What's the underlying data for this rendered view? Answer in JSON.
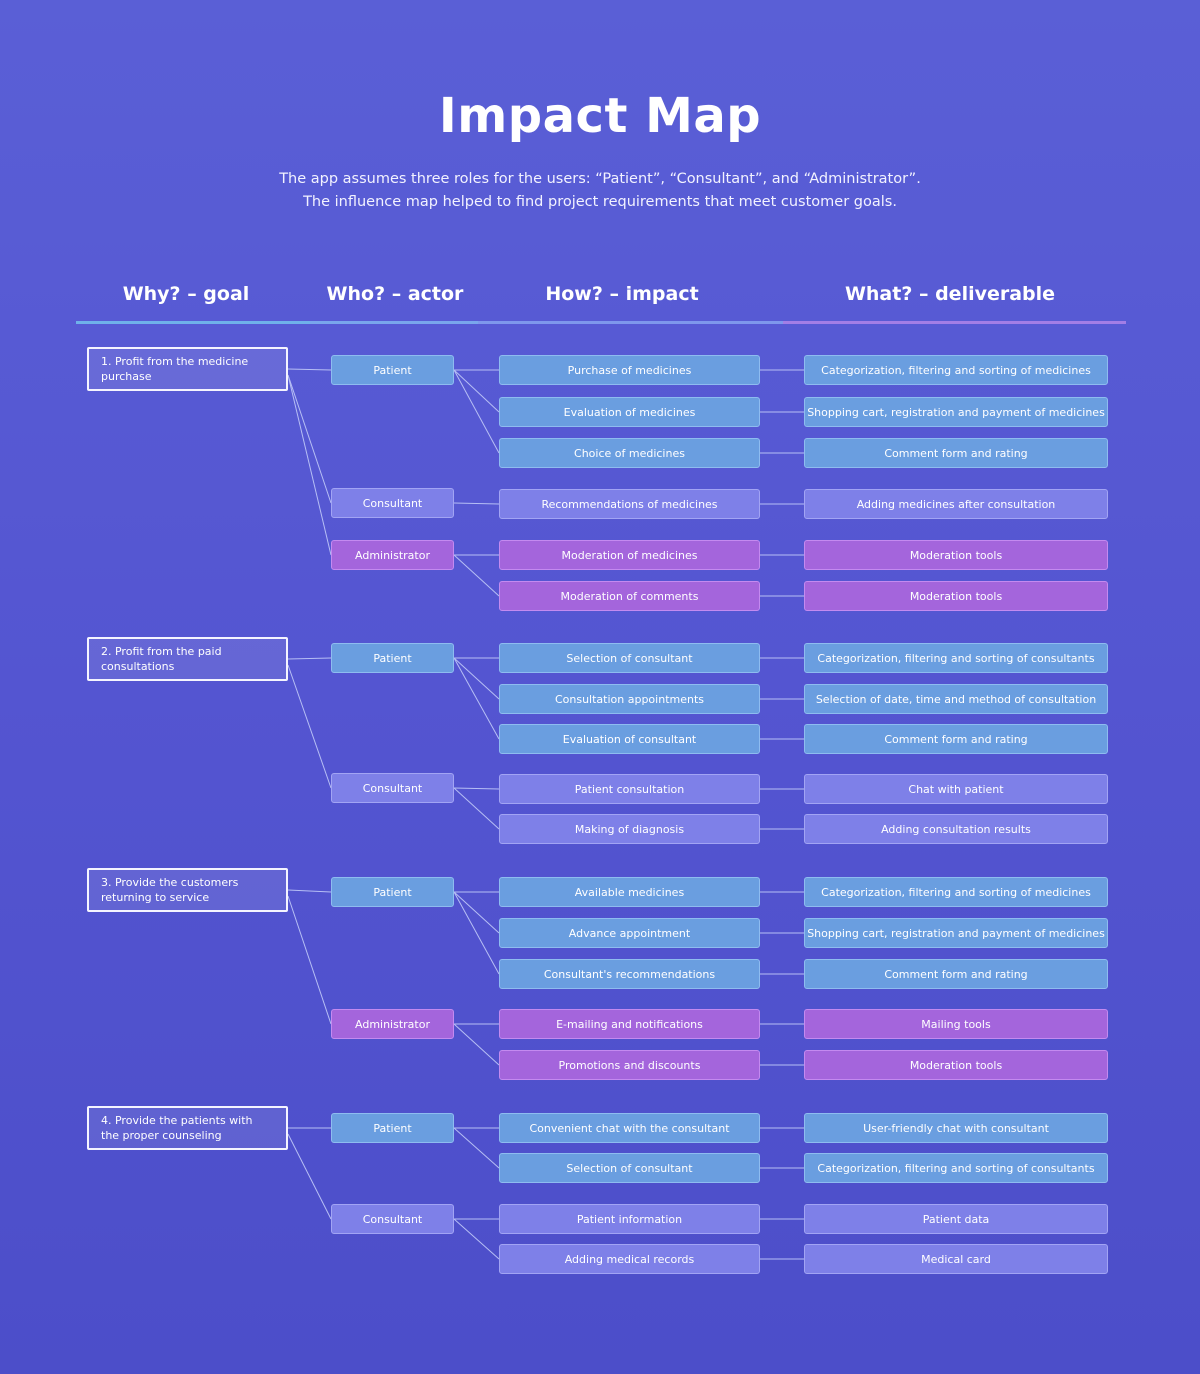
{
  "header": {
    "title": "Impact Map",
    "subtitle_line1": "The app assumes three roles for the users: “Patient”, “Consultant”,  and “Administrator”.",
    "subtitle_line2": "The influence map helped to find project requirements that meet customer goals."
  },
  "columns": [
    "Why? – goal",
    "Who? – actor",
    "How? – impact",
    "What? – deliverable"
  ],
  "colors": {
    "blue": "#6a9ee0",
    "violet": "#7e80e8",
    "purple": "#a465dc",
    "links": "#b7bff5"
  },
  "goals": [
    {
      "label": "1. Profit from the medicine purchase",
      "actors": [
        {
          "label": "Patient",
          "color": "blue",
          "rows": [
            {
              "impact": "Purchase of medicines",
              "deliverable": "Categorization, filtering and sorting of medicines"
            },
            {
              "impact": "Evaluation of medicines",
              "deliverable": "Shopping cart, registration and payment of medicines"
            },
            {
              "impact": "Choice of medicines",
              "deliverable": "Comment form and rating"
            }
          ]
        },
        {
          "label": "Consultant",
          "color": "violet",
          "rows": [
            {
              "impact": "Recommendations of medicines",
              "deliverable": "Adding medicines after consultation"
            }
          ]
        },
        {
          "label": "Administrator",
          "color": "purple",
          "rows": [
            {
              "impact": "Moderation of medicines",
              "deliverable": "Moderation tools"
            },
            {
              "impact": "Moderation of comments",
              "deliverable": "Moderation tools"
            }
          ]
        }
      ]
    },
    {
      "label": "2. Profit from the paid consultations",
      "actors": [
        {
          "label": "Patient",
          "color": "blue",
          "rows": [
            {
              "impact": "Selection of consultant",
              "deliverable": "Categorization, filtering and sorting of consultants"
            },
            {
              "impact": "Consultation appointments",
              "deliverable": "Selection of date, time and method of consultation"
            },
            {
              "impact": "Evaluation of consultant",
              "deliverable": "Comment form and rating"
            }
          ]
        },
        {
          "label": "Consultant",
          "color": "violet",
          "rows": [
            {
              "impact": "Patient consultation",
              "deliverable": "Chat with patient"
            },
            {
              "impact": "Making of diagnosis",
              "deliverable": "Adding consultation results"
            }
          ]
        }
      ]
    },
    {
      "label": "3. Provide the customers returning to service",
      "actors": [
        {
          "label": "Patient",
          "color": "blue",
          "rows": [
            {
              "impact": "Available medicines",
              "deliverable": "Categorization, filtering and sorting of medicines"
            },
            {
              "impact": "Advance appointment",
              "deliverable": "Shopping cart, registration and payment of medicines"
            },
            {
              "impact": "Consultant's recommendations",
              "deliverable": "Comment form and rating"
            }
          ]
        },
        {
          "label": "Administrator",
          "color": "purple",
          "rows": [
            {
              "impact": "E-mailing and notifications",
              "deliverable": "Mailing tools"
            },
            {
              "impact": "Promotions and discounts",
              "deliverable": "Moderation tools"
            }
          ]
        }
      ]
    },
    {
      "label": "4. Provide the patients with the proper counseling",
      "actors": [
        {
          "label": "Patient",
          "color": "blue",
          "rows": [
            {
              "impact": "Convenient chat with the consultant",
              "deliverable": "User-friendly chat with consultant"
            },
            {
              "impact": "Selection of consultant",
              "deliverable": "Categorization, filtering and sorting of consultants"
            }
          ]
        },
        {
          "label": "Consultant",
          "color": "violet",
          "rows": [
            {
              "impact": "Patient information",
              "deliverable": "Patient data"
            },
            {
              "impact": "Adding medical records",
              "deliverable": "Medical card"
            }
          ]
        }
      ]
    }
  ]
}
